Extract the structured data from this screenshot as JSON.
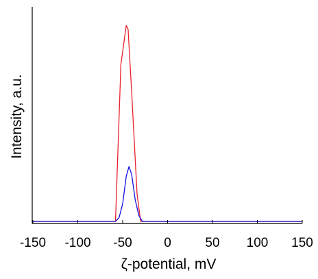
{
  "chart_data": {
    "type": "line",
    "xlabel": "ζ-potential, mV",
    "ylabel": "Intensity, a.u.",
    "xlim": [
      -150,
      150
    ],
    "ylim": [
      0,
      100
    ],
    "xticks": [
      -150,
      -100,
      -50,
      0,
      50,
      100,
      150
    ],
    "xtick_labels": [
      "-150",
      "-100",
      "-50",
      "0",
      "50",
      "100",
      "150"
    ],
    "yticks_shown": false,
    "grid": false,
    "legend": "none",
    "series": [
      {
        "color": "#e8202a",
        "x": [
          -150,
          -58,
          -52,
          -46,
          -44,
          -40,
          -34,
          -30,
          150
        ],
        "y": [
          0,
          0,
          80,
          100,
          98,
          66,
          14,
          0,
          0
        ]
      },
      {
        "color": "#1010e0",
        "x": [
          -150,
          -58,
          -54,
          -50,
          -46,
          -43,
          -40,
          -36,
          -32,
          -28,
          150
        ],
        "y": [
          0,
          0,
          2,
          9,
          23,
          28,
          24,
          11,
          3,
          0,
          0
        ]
      }
    ]
  }
}
